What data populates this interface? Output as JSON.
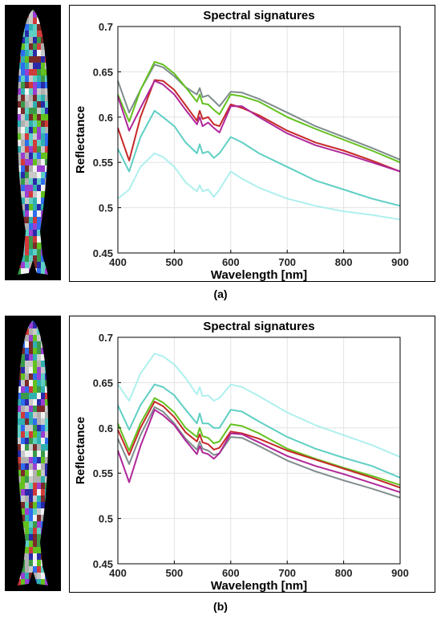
{
  "colors": {
    "fish_background": "#000000",
    "grid": "#e3e3e3",
    "series": {
      "gray": "#7f8c8d",
      "green": "#63c11f",
      "red": "#c62828",
      "magenta": "#b0279a",
      "teal": "#5fcfc4",
      "cyan": "#aef0ee"
    }
  },
  "panels": [
    {
      "id": "a",
      "caption": "(a)",
      "fish_image": "segmented-fish-mosaic"
    },
    {
      "id": "b",
      "caption": "(b)",
      "fish_image": "segmented-fish-mosaic"
    }
  ],
  "chart_data": [
    {
      "type": "line",
      "title": "Spectral signatures",
      "xlabel": "Wavelength [nm]",
      "ylabel": "Reflectance",
      "xlim": [
        400,
        900
      ],
      "ylim": [
        0.45,
        0.7
      ],
      "xticks": [
        400,
        500,
        600,
        700,
        800,
        900
      ],
      "yticks": [
        0.45,
        0.5,
        0.55,
        0.6,
        0.65,
        0.7
      ],
      "ytick_labels": [
        "0.45",
        "0.5",
        "0.55",
        "0.6",
        "0.65",
        "0.7"
      ],
      "grid": true,
      "x": [
        400,
        420,
        440,
        465,
        480,
        500,
        520,
        540,
        545,
        550,
        560,
        570,
        580,
        600,
        620,
        650,
        700,
        750,
        800,
        850,
        900
      ],
      "series": [
        {
          "color": "gray",
          "values": [
            0.64,
            0.605,
            0.63,
            0.658,
            0.655,
            0.645,
            0.633,
            0.625,
            0.632,
            0.622,
            0.624,
            0.618,
            0.612,
            0.628,
            0.627,
            0.62,
            0.605,
            0.59,
            0.578,
            0.566,
            0.553
          ]
        },
        {
          "color": "green",
          "values": [
            0.625,
            0.595,
            0.63,
            0.661,
            0.658,
            0.648,
            0.633,
            0.617,
            0.625,
            0.615,
            0.614,
            0.608,
            0.603,
            0.625,
            0.623,
            0.617,
            0.6,
            0.587,
            0.575,
            0.563,
            0.55
          ]
        },
        {
          "color": "red",
          "values": [
            0.588,
            0.552,
            0.6,
            0.641,
            0.64,
            0.63,
            0.613,
            0.596,
            0.607,
            0.598,
            0.6,
            0.592,
            0.59,
            0.614,
            0.61,
            0.602,
            0.585,
            0.572,
            0.563,
            0.552,
            0.54
          ]
        },
        {
          "color": "magenta",
          "values": [
            0.623,
            0.585,
            0.61,
            0.64,
            0.636,
            0.625,
            0.608,
            0.592,
            0.6,
            0.59,
            0.594,
            0.588,
            0.583,
            0.612,
            0.612,
            0.6,
            0.582,
            0.569,
            0.56,
            0.55,
            0.54
          ]
        },
        {
          "color": "teal",
          "values": [
            0.565,
            0.54,
            0.578,
            0.607,
            0.6,
            0.59,
            0.572,
            0.56,
            0.57,
            0.56,
            0.562,
            0.555,
            0.56,
            0.578,
            0.572,
            0.56,
            0.545,
            0.53,
            0.52,
            0.51,
            0.502
          ]
        },
        {
          "color": "cyan",
          "values": [
            0.51,
            0.52,
            0.545,
            0.56,
            0.556,
            0.545,
            0.528,
            0.518,
            0.525,
            0.518,
            0.52,
            0.512,
            0.52,
            0.54,
            0.532,
            0.522,
            0.51,
            0.502,
            0.496,
            0.492,
            0.487
          ]
        }
      ]
    },
    {
      "type": "line",
      "title": "Spectral signatures",
      "xlabel": "Wavelength [nm]",
      "ylabel": "Reflectance",
      "xlim": [
        400,
        900
      ],
      "ylim": [
        0.45,
        0.7
      ],
      "xticks": [
        400,
        500,
        600,
        700,
        800,
        900
      ],
      "yticks": [
        0.45,
        0.5,
        0.55,
        0.6,
        0.65,
        0.7
      ],
      "ytick_labels": [
        "0.45",
        "0.5",
        "0.55",
        "0.6",
        "0.65",
        "0.7"
      ],
      "grid": true,
      "x": [
        400,
        420,
        440,
        465,
        480,
        500,
        520,
        540,
        545,
        550,
        560,
        570,
        580,
        600,
        620,
        650,
        700,
        750,
        800,
        850,
        900
      ],
      "series": [
        {
          "color": "cyan",
          "values": [
            0.648,
            0.63,
            0.66,
            0.682,
            0.679,
            0.67,
            0.655,
            0.637,
            0.645,
            0.635,
            0.636,
            0.63,
            0.633,
            0.648,
            0.645,
            0.635,
            0.617,
            0.603,
            0.592,
            0.581,
            0.568
          ]
        },
        {
          "color": "teal",
          "values": [
            0.625,
            0.598,
            0.625,
            0.648,
            0.645,
            0.636,
            0.62,
            0.605,
            0.616,
            0.605,
            0.605,
            0.6,
            0.6,
            0.62,
            0.618,
            0.607,
            0.59,
            0.577,
            0.567,
            0.558,
            0.545
          ]
        },
        {
          "color": "green",
          "values": [
            0.605,
            0.575,
            0.605,
            0.633,
            0.628,
            0.617,
            0.6,
            0.59,
            0.6,
            0.591,
            0.589,
            0.583,
            0.585,
            0.604,
            0.602,
            0.594,
            0.577,
            0.566,
            0.556,
            0.547,
            0.537
          ]
        },
        {
          "color": "red",
          "values": [
            0.598,
            0.57,
            0.6,
            0.629,
            0.624,
            0.612,
            0.595,
            0.585,
            0.593,
            0.584,
            0.582,
            0.576,
            0.578,
            0.596,
            0.594,
            0.588,
            0.575,
            0.565,
            0.555,
            0.545,
            0.534
          ]
        },
        {
          "color": "gray",
          "values": [
            0.588,
            0.56,
            0.592,
            0.623,
            0.618,
            0.605,
            0.588,
            0.576,
            0.585,
            0.577,
            0.575,
            0.57,
            0.572,
            0.59,
            0.589,
            0.58,
            0.564,
            0.552,
            0.542,
            0.533,
            0.523
          ]
        },
        {
          "color": "magenta",
          "values": [
            0.575,
            0.54,
            0.58,
            0.62,
            0.614,
            0.603,
            0.586,
            0.571,
            0.58,
            0.573,
            0.571,
            0.566,
            0.572,
            0.594,
            0.593,
            0.584,
            0.569,
            0.558,
            0.549,
            0.539,
            0.529
          ]
        }
      ]
    }
  ]
}
